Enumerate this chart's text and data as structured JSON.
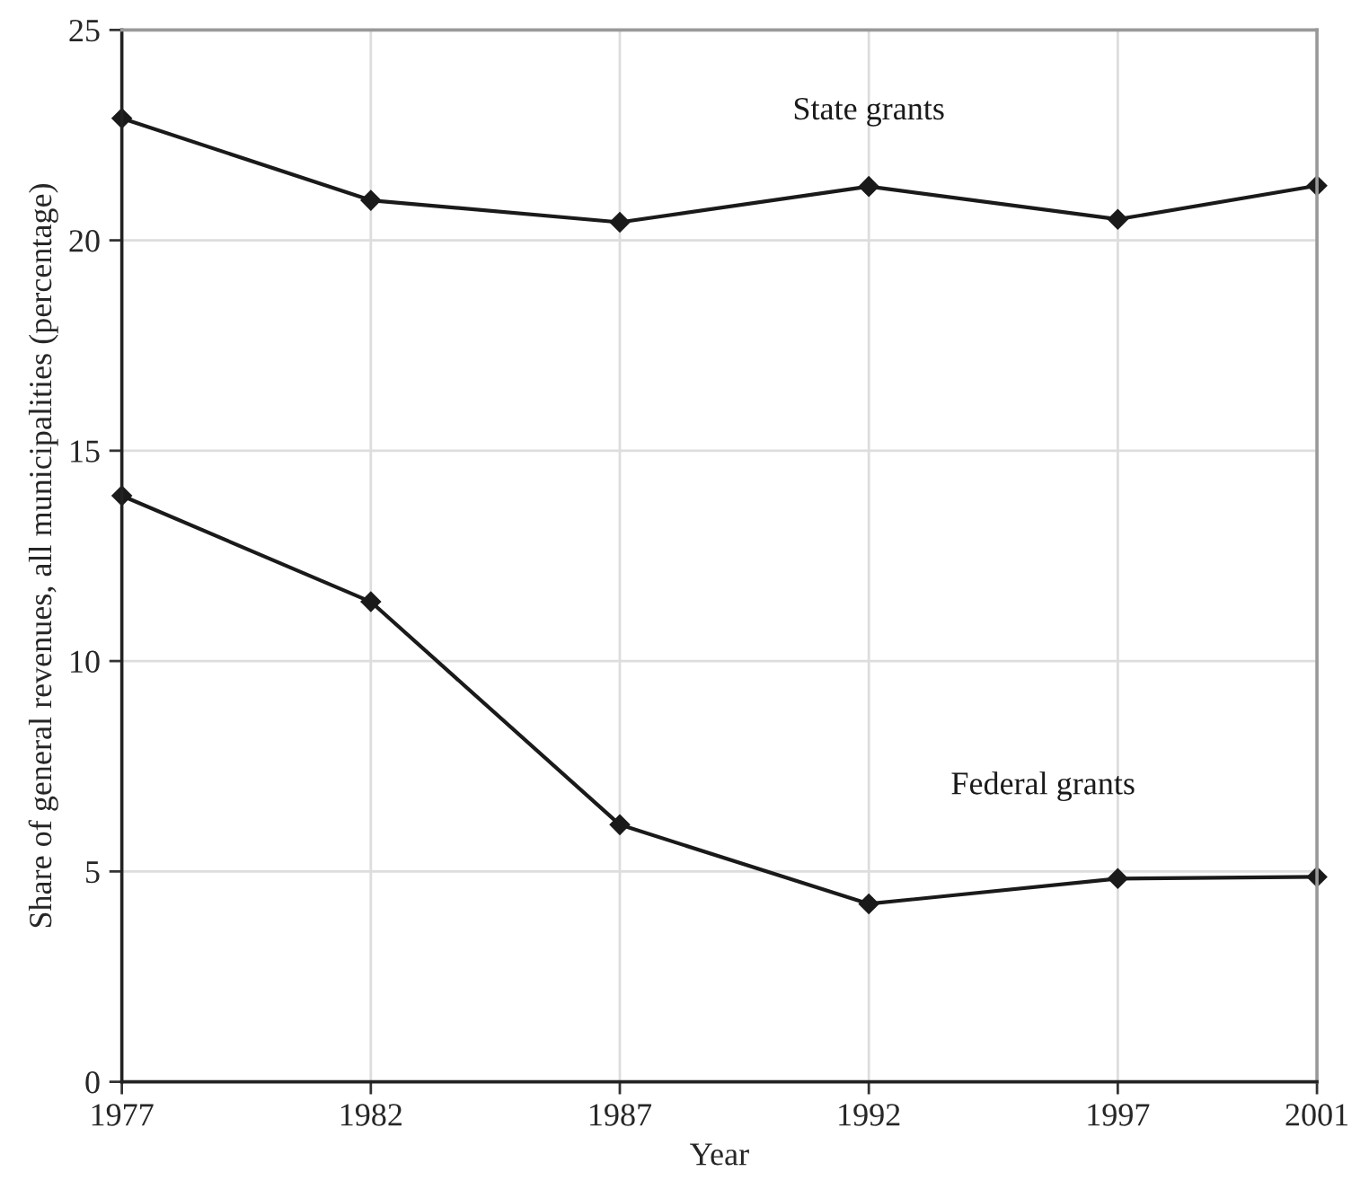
{
  "chart_data": {
    "type": "line",
    "xlabel": "Year",
    "ylabel": "Share of general revenues, all municipalities (percentage)",
    "x": [
      1977,
      1982,
      1987,
      1992,
      1997,
      2001
    ],
    "series": [
      {
        "name": "State grants",
        "color": "#1a1a1a",
        "values": [
          22.9,
          20.95,
          20.43,
          21.28,
          20.5,
          21.3
        ]
      },
      {
        "name": "Federal grants",
        "color": "#1a1a1a",
        "values": [
          13.93,
          11.41,
          6.11,
          4.23,
          4.83,
          4.87
        ]
      }
    ],
    "xlim": [
      1977,
      2001
    ],
    "xticks": [
      1977,
      1982,
      1987,
      1992,
      1997,
      2001
    ],
    "ylim": [
      0,
      25
    ],
    "yticks": [
      0,
      5,
      10,
      15,
      20,
      25
    ],
    "grid": true,
    "marker": "diamond",
    "line_style": "solid",
    "legend": false
  }
}
